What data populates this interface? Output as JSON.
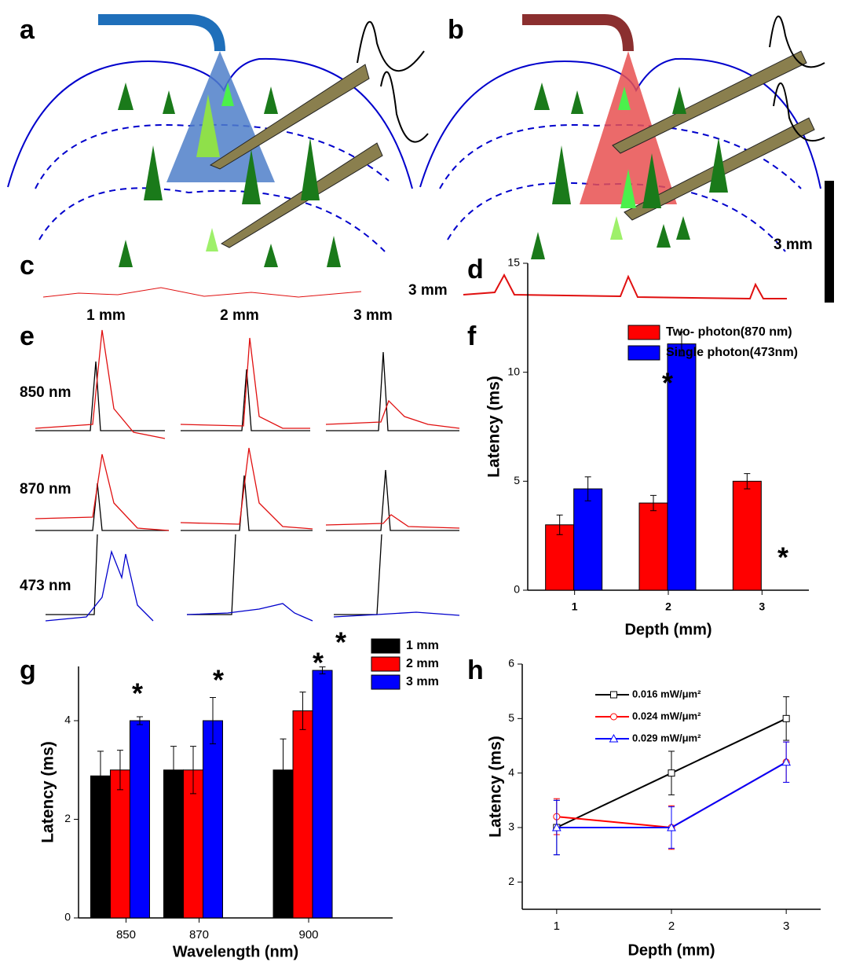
{
  "panel_labels": [
    "a",
    "b",
    "c",
    "d",
    "e",
    "f",
    "g",
    "h"
  ],
  "scale_labels": [
    "3 mm",
    "3 mm"
  ],
  "panel_e": {
    "columns": [
      "1 mm",
      "2 mm",
      "3 mm"
    ],
    "rows": [
      "850 nm",
      "870 nm",
      "473 nm"
    ]
  },
  "chart_data": [
    {
      "type": "bar",
      "x_label": "Depth (mm)",
      "y_label": "Latency (ms)",
      "categories": [
        "1",
        "2",
        "3"
      ],
      "series": [
        {
          "name": "Two- photon(870 nm)",
          "color": "#ff0000",
          "values": [
            3,
            4,
            5
          ],
          "errors": [
            0.45,
            0.35,
            0.35
          ]
        },
        {
          "name": "Single photon(473nm)",
          "color": "#0000ff",
          "values": [
            4.65,
            11.3,
            null
          ],
          "errors": [
            0.55,
            0.55,
            null
          ]
        }
      ],
      "ylim": [
        0,
        15
      ],
      "yticks": [
        0,
        5,
        10,
        15
      ],
      "annotations": [
        "*",
        "*"
      ]
    },
    {
      "type": "bar",
      "x_label": "Wavelength (nm)",
      "y_label": "Latency (ms)",
      "x": [
        850,
        870,
        900
      ],
      "xlim": [
        837,
        923
      ],
      "xticks": [
        850,
        870,
        900
      ],
      "series": [
        {
          "name": "1 mm",
          "color": "#000000",
          "values": [
            2.88,
            3,
            3
          ],
          "errors": [
            0.5,
            0.48,
            0.63
          ]
        },
        {
          "name": "2 mm",
          "color": "#ff0000",
          "values": [
            3,
            3,
            4.2
          ],
          "errors": [
            0.4,
            0.48,
            0.38
          ]
        },
        {
          "name": "3 mm",
          "color": "#0000ff",
          "values": [
            4,
            4,
            5.02
          ],
          "errors": [
            0.08,
            0.47,
            0.07
          ]
        }
      ],
      "ylim": [
        0,
        5.1
      ],
      "yticks": [
        0,
        2,
        4
      ],
      "annotations": [
        "*",
        "*",
        "*",
        "*"
      ]
    },
    {
      "type": "line",
      "x_label": "Depth (mm)",
      "y_label": "Latency (ms)",
      "x": [
        1,
        2,
        3
      ],
      "xlim": [
        0.7,
        3.3
      ],
      "xticks": [
        1,
        2,
        3
      ],
      "series": [
        {
          "name": "0.016 mW/μm²",
          "color": "#000000",
          "marker": "square",
          "values": [
            3,
            4,
            5
          ],
          "errors": [
            0.5,
            0.4,
            0.4
          ]
        },
        {
          "name": "0.024 mW/μm²",
          "color": "#ff0000",
          "marker": "circle",
          "values": [
            3.2,
            3,
            4.2
          ],
          "errors": [
            0.33,
            0.4,
            0.37
          ]
        },
        {
          "name": "0.029 mW/μm²",
          "color": "#0000ff",
          "marker": "triangle",
          "values": [
            3,
            3,
            4.2
          ],
          "errors": [
            0.5,
            0.38,
            0.37
          ]
        }
      ],
      "ylim": [
        1.5,
        6
      ],
      "yticks": [
        2,
        3,
        4,
        5,
        6
      ]
    }
  ]
}
